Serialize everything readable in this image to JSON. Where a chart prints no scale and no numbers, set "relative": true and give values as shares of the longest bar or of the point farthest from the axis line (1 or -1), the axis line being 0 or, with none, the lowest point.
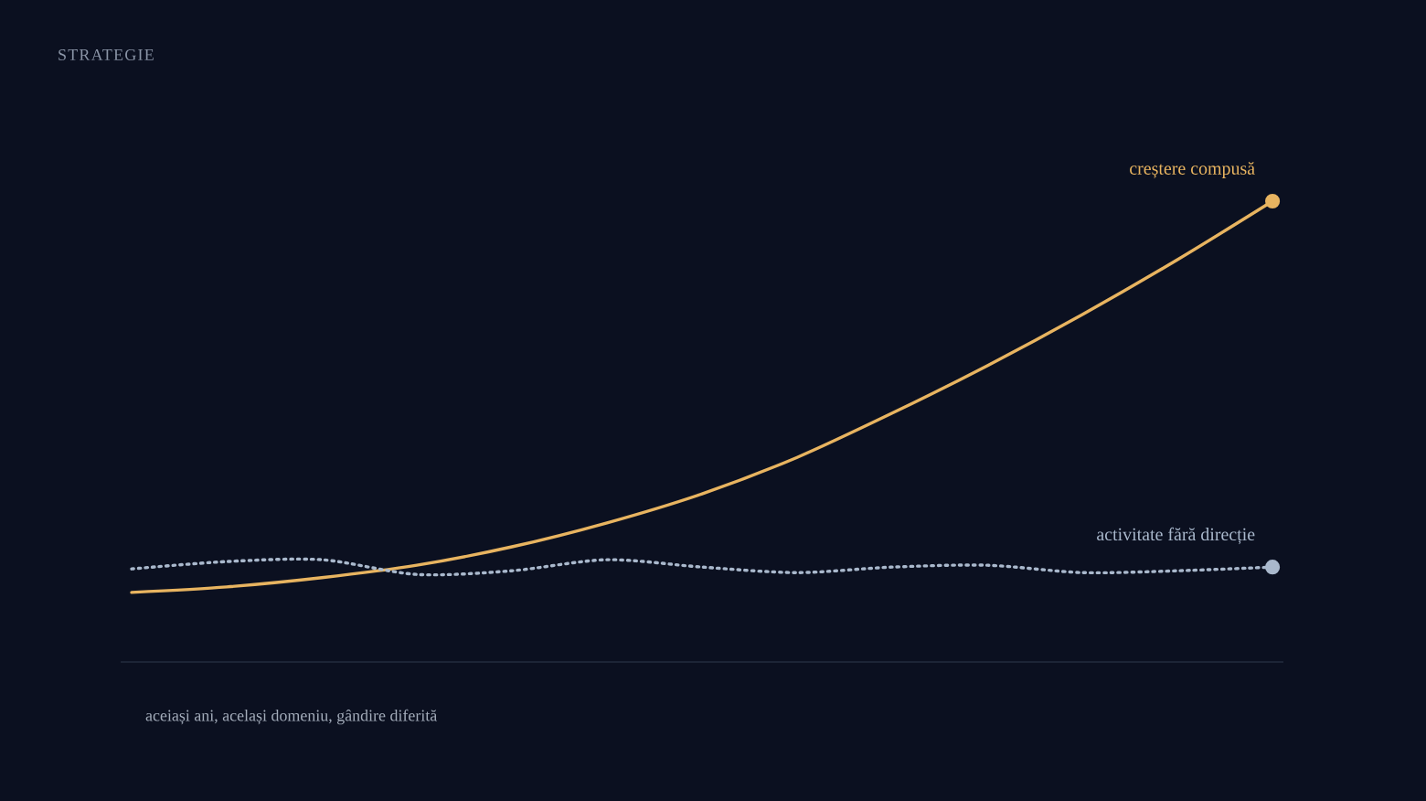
{
  "chart_data": {
    "type": "line",
    "title": "STRATEGIE",
    "relative": true,
    "categories": [
      null,
      null,
      null,
      null,
      null,
      null,
      null,
      null,
      null,
      null,
      null,
      null,
      null
    ],
    "series": [
      {
        "name": "creștere compusă",
        "color": "#e8b460",
        "line_style": "solid",
        "values": [
          0.151,
          0.163,
          0.183,
          0.21,
          0.25,
          0.302,
          0.365,
          0.444,
          0.54,
          0.643,
          0.754,
          0.873,
          1
        ]
      },
      {
        "name": "activitate fără direcție",
        "color": "#a9b8cc",
        "line_style": "dotted",
        "values": [
          0.202,
          0.218,
          0.222,
          0.19,
          0.198,
          0.222,
          0.206,
          0.194,
          0.206,
          0.21,
          0.194,
          0.198,
          0.206
        ]
      }
    ],
    "annotations": [
      "aceiași ani, același domeniu, gândire diferită"
    ]
  }
}
